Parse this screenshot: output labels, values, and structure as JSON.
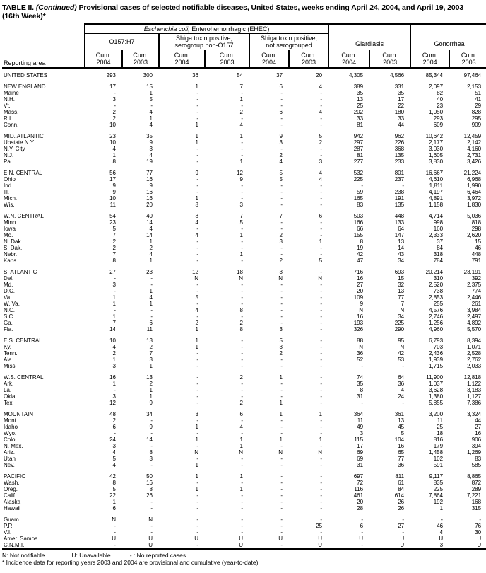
{
  "title": {
    "label": "TABLE II.",
    "continued": "(Continued)",
    "text": "Provisional cases of selected notifiable diseases, United States, weeks ending April 24, 2004, and April 19, 2003",
    "line2": "(16th Week)*"
  },
  "header": {
    "reporting_area": "Reporting area",
    "ehec_italic": "Escherichia coli,",
    "ehec_rest": " Enterohemorrhagic (EHEC)",
    "o157": "O157:H7",
    "shiga_serogroup_l1": "Shiga toxin positive,",
    "shiga_serogroup_l2": "serogroup non-O157",
    "shiga_notsero_l1": "Shiga toxin positive,",
    "shiga_notsero_l2": "not serogrouped",
    "giardiasis": "Giardiasis",
    "gonorrhea": "Gonorrhea",
    "cum_label": "Cum.",
    "years": [
      "2004",
      "2003",
      "2004",
      "2003",
      "2004",
      "2003",
      "2004",
      "2003",
      "2004",
      "2003"
    ]
  },
  "table": {
    "rows": [
      {
        "area": "UNITED STATES",
        "type": "first",
        "gap": false,
        "v": [
          "293",
          "300",
          "36",
          "54",
          "37",
          "20",
          "4,305",
          "4,566",
          "85,344",
          "97,464"
        ]
      },
      {
        "area": "NEW ENGLAND",
        "type": "region",
        "gap": true,
        "v": [
          "17",
          "15",
          "1",
          "7",
          "6",
          "4",
          "389",
          "331",
          "2,097",
          "2,153"
        ]
      },
      {
        "area": "Maine",
        "type": "state",
        "gap": false,
        "v": [
          "-",
          "1",
          "-",
          "-",
          "-",
          "-",
          "35",
          "35",
          "82",
          "51"
        ]
      },
      {
        "area": "N.H.",
        "type": "state",
        "gap": false,
        "v": [
          "3",
          "5",
          "-",
          "1",
          "-",
          "-",
          "13",
          "17",
          "40",
          "41"
        ]
      },
      {
        "area": "Vt.",
        "type": "state",
        "gap": false,
        "v": [
          "-",
          "-",
          "-",
          "-",
          "-",
          "-",
          "25",
          "22",
          "23",
          "29"
        ]
      },
      {
        "area": "Mass.",
        "type": "state",
        "gap": false,
        "v": [
          "2",
          "4",
          "-",
          "2",
          "6",
          "4",
          "202",
          "180",
          "1,050",
          "828"
        ]
      },
      {
        "area": "R.I.",
        "type": "state",
        "gap": false,
        "v": [
          "2",
          "1",
          "-",
          "-",
          "-",
          "-",
          "33",
          "33",
          "293",
          "295"
        ]
      },
      {
        "area": "Conn.",
        "type": "state",
        "gap": false,
        "v": [
          "10",
          "4",
          "1",
          "4",
          "-",
          "-",
          "81",
          "44",
          "609",
          "909"
        ]
      },
      {
        "area": "MID. ATLANTIC",
        "type": "region",
        "gap": true,
        "v": [
          "23",
          "35",
          "1",
          "1",
          "9",
          "5",
          "942",
          "962",
          "10,642",
          "12,459"
        ]
      },
      {
        "area": "Upstate N.Y.",
        "type": "state",
        "gap": false,
        "v": [
          "10",
          "9",
          "1",
          "-",
          "3",
          "2",
          "297",
          "226",
          "2,177",
          "2,142"
        ]
      },
      {
        "area": "N.Y. City",
        "type": "state",
        "gap": false,
        "v": [
          "4",
          "3",
          "-",
          "-",
          "-",
          "-",
          "287",
          "368",
          "3,030",
          "4,160"
        ]
      },
      {
        "area": "N.J.",
        "type": "state",
        "gap": false,
        "v": [
          "1",
          "4",
          "-",
          "-",
          "2",
          "-",
          "81",
          "135",
          "1,605",
          "2,731"
        ]
      },
      {
        "area": "Pa.",
        "type": "state",
        "gap": false,
        "v": [
          "8",
          "19",
          "-",
          "1",
          "4",
          "3",
          "277",
          "233",
          "3,830",
          "3,426"
        ]
      },
      {
        "area": "E.N. CENTRAL",
        "type": "region",
        "gap": true,
        "v": [
          "56",
          "77",
          "9",
          "12",
          "5",
          "4",
          "532",
          "801",
          "16,667",
          "21,224"
        ]
      },
      {
        "area": "Ohio",
        "type": "state",
        "gap": false,
        "v": [
          "17",
          "16",
          "-",
          "9",
          "5",
          "4",
          "225",
          "237",
          "4,610",
          "6,968"
        ]
      },
      {
        "area": "Ind.",
        "type": "state",
        "gap": false,
        "v": [
          "9",
          "9",
          "-",
          "-",
          "-",
          "-",
          "-",
          "-",
          "1,811",
          "1,990"
        ]
      },
      {
        "area": "Ill.",
        "type": "state",
        "gap": false,
        "v": [
          "9",
          "16",
          "-",
          "-",
          "-",
          "-",
          "59",
          "238",
          "4,197",
          "6,464"
        ]
      },
      {
        "area": "Mich.",
        "type": "state",
        "gap": false,
        "v": [
          "10",
          "16",
          "1",
          "-",
          "-",
          "-",
          "165",
          "191",
          "4,891",
          "3,972"
        ]
      },
      {
        "area": "Wis.",
        "type": "state",
        "gap": false,
        "v": [
          "11",
          "20",
          "8",
          "3",
          "-",
          "-",
          "83",
          "135",
          "1,158",
          "1,830"
        ]
      },
      {
        "area": "W.N. CENTRAL",
        "type": "region",
        "gap": true,
        "v": [
          "54",
          "40",
          "8",
          "7",
          "7",
          "6",
          "503",
          "448",
          "4,714",
          "5,036"
        ]
      },
      {
        "area": "Minn.",
        "type": "state",
        "gap": false,
        "v": [
          "23",
          "14",
          "4",
          "5",
          "-",
          "-",
          "166",
          "133",
          "998",
          "818"
        ]
      },
      {
        "area": "Iowa",
        "type": "state",
        "gap": false,
        "v": [
          "5",
          "4",
          "-",
          "-",
          "-",
          "-",
          "66",
          "64",
          "160",
          "298"
        ]
      },
      {
        "area": "Mo.",
        "type": "state",
        "gap": false,
        "v": [
          "7",
          "14",
          "4",
          "1",
          "2",
          "-",
          "155",
          "147",
          "2,333",
          "2,620"
        ]
      },
      {
        "area": "N. Dak.",
        "type": "state",
        "gap": false,
        "v": [
          "2",
          "1",
          "-",
          "-",
          "3",
          "1",
          "8",
          "13",
          "37",
          "15"
        ]
      },
      {
        "area": "S. Dak.",
        "type": "state",
        "gap": false,
        "v": [
          "2",
          "2",
          "-",
          "-",
          "-",
          "-",
          "19",
          "14",
          "84",
          "46"
        ]
      },
      {
        "area": "Nebr.",
        "type": "state",
        "gap": false,
        "v": [
          "7",
          "4",
          "-",
          "1",
          "-",
          "-",
          "42",
          "43",
          "318",
          "448"
        ]
      },
      {
        "area": "Kans.",
        "type": "state",
        "gap": false,
        "v": [
          "8",
          "1",
          "-",
          "-",
          "2",
          "5",
          "47",
          "34",
          "784",
          "791"
        ]
      },
      {
        "area": "S. ATLANTIC",
        "type": "region",
        "gap": true,
        "v": [
          "27",
          "23",
          "12",
          "18",
          "3",
          "-",
          "716",
          "693",
          "20,214",
          "23,191"
        ]
      },
      {
        "area": "Del.",
        "type": "state",
        "gap": false,
        "v": [
          "-",
          "-",
          "N",
          "N",
          "N",
          "N",
          "16",
          "15",
          "310",
          "392"
        ]
      },
      {
        "area": "Md.",
        "type": "state",
        "gap": false,
        "v": [
          "3",
          "-",
          "-",
          "-",
          "-",
          "-",
          "27",
          "32",
          "2,520",
          "2,375"
        ]
      },
      {
        "area": "D.C.",
        "type": "state",
        "gap": false,
        "v": [
          "-",
          "1",
          "-",
          "-",
          "-",
          "-",
          "20",
          "13",
          "738",
          "774"
        ]
      },
      {
        "area": "Va.",
        "type": "state",
        "gap": false,
        "v": [
          "1",
          "4",
          "5",
          "-",
          "-",
          "-",
          "109",
          "77",
          "2,853",
          "2,446"
        ]
      },
      {
        "area": "W. Va.",
        "type": "state",
        "gap": false,
        "v": [
          "1",
          "1",
          "-",
          "-",
          "-",
          "-",
          "9",
          "7",
          "255",
          "261"
        ]
      },
      {
        "area": "N.C.",
        "type": "state",
        "gap": false,
        "v": [
          "-",
          "-",
          "4",
          "8",
          "-",
          "-",
          "N",
          "N",
          "4,576",
          "3,984"
        ]
      },
      {
        "area": "S.C.",
        "type": "state",
        "gap": false,
        "v": [
          "1",
          "-",
          "-",
          "-",
          "-",
          "-",
          "16",
          "34",
          "2,746",
          "2,497"
        ]
      },
      {
        "area": "Ga.",
        "type": "state",
        "gap": false,
        "v": [
          "7",
          "6",
          "2",
          "2",
          "-",
          "-",
          "193",
          "225",
          "1,256",
          "4,892"
        ]
      },
      {
        "area": "Fla.",
        "type": "state",
        "gap": false,
        "v": [
          "14",
          "11",
          "1",
          "8",
          "3",
          "-",
          "326",
          "290",
          "4,960",
          "5,570"
        ]
      },
      {
        "area": "E.S. CENTRAL",
        "type": "region",
        "gap": true,
        "v": [
          "10",
          "13",
          "1",
          "-",
          "5",
          "-",
          "88",
          "95",
          "6,793",
          "8,394"
        ]
      },
      {
        "area": "Ky.",
        "type": "state",
        "gap": false,
        "v": [
          "4",
          "2",
          "1",
          "-",
          "3",
          "-",
          "N",
          "N",
          "703",
          "1,071"
        ]
      },
      {
        "area": "Tenn.",
        "type": "state",
        "gap": false,
        "v": [
          "2",
          "7",
          "-",
          "-",
          "2",
          "-",
          "36",
          "42",
          "2,436",
          "2,528"
        ]
      },
      {
        "area": "Ala.",
        "type": "state",
        "gap": false,
        "v": [
          "1",
          "3",
          "-",
          "-",
          "-",
          "-",
          "52",
          "53",
          "1,939",
          "2,762"
        ]
      },
      {
        "area": "Miss.",
        "type": "state",
        "gap": false,
        "v": [
          "3",
          "1",
          "-",
          "-",
          "-",
          "-",
          "-",
          "-",
          "1,715",
          "2,033"
        ]
      },
      {
        "area": "W.S. CENTRAL",
        "type": "region",
        "gap": true,
        "v": [
          "16",
          "13",
          "-",
          "2",
          "1",
          "-",
          "74",
          "64",
          "11,900",
          "12,818"
        ]
      },
      {
        "area": "Ark.",
        "type": "state",
        "gap": false,
        "v": [
          "1",
          "2",
          "-",
          "-",
          "-",
          "-",
          "35",
          "36",
          "1,037",
          "1,122"
        ]
      },
      {
        "area": "La.",
        "type": "state",
        "gap": false,
        "v": [
          "-",
          "1",
          "-",
          "-",
          "-",
          "-",
          "8",
          "4",
          "3,628",
          "3,183"
        ]
      },
      {
        "area": "Okla.",
        "type": "state",
        "gap": false,
        "v": [
          "3",
          "1",
          "-",
          "-",
          "-",
          "-",
          "31",
          "24",
          "1,380",
          "1,127"
        ]
      },
      {
        "area": "Tex.",
        "type": "state",
        "gap": false,
        "v": [
          "12",
          "9",
          "-",
          "2",
          "1",
          "-",
          "-",
          "-",
          "5,855",
          "7,386"
        ]
      },
      {
        "area": "MOUNTAIN",
        "type": "region",
        "gap": true,
        "v": [
          "48",
          "34",
          "3",
          "6",
          "1",
          "1",
          "364",
          "361",
          "3,200",
          "3,324"
        ]
      },
      {
        "area": "Mont.",
        "type": "state",
        "gap": false,
        "v": [
          "2",
          "-",
          "-",
          "-",
          "-",
          "-",
          "11",
          "13",
          "11",
          "44"
        ]
      },
      {
        "area": "Idaho",
        "type": "state",
        "gap": false,
        "v": [
          "6",
          "9",
          "1",
          "4",
          "-",
          "-",
          "49",
          "45",
          "25",
          "27"
        ]
      },
      {
        "area": "Wyo.",
        "type": "state",
        "gap": false,
        "v": [
          "-",
          "-",
          "-",
          "-",
          "-",
          "-",
          "3",
          "5",
          "18",
          "16"
        ]
      },
      {
        "area": "Colo.",
        "type": "state",
        "gap": false,
        "v": [
          "24",
          "14",
          "1",
          "1",
          "1",
          "1",
          "115",
          "104",
          "816",
          "906"
        ]
      },
      {
        "area": "N. Mex.",
        "type": "state",
        "gap": false,
        "v": [
          "3",
          "-",
          "-",
          "1",
          "-",
          "-",
          "17",
          "16",
          "179",
          "394"
        ]
      },
      {
        "area": "Ariz.",
        "type": "state",
        "gap": false,
        "v": [
          "4",
          "8",
          "N",
          "N",
          "N",
          "N",
          "69",
          "65",
          "1,458",
          "1,269"
        ]
      },
      {
        "area": "Utah",
        "type": "state",
        "gap": false,
        "v": [
          "5",
          "3",
          "-",
          "-",
          "-",
          "-",
          "69",
          "77",
          "102",
          "83"
        ]
      },
      {
        "area": "Nev.",
        "type": "state",
        "gap": false,
        "v": [
          "4",
          "-",
          "1",
          "-",
          "-",
          "-",
          "31",
          "36",
          "591",
          "585"
        ]
      },
      {
        "area": "PACIFIC",
        "type": "region",
        "gap": true,
        "v": [
          "42",
          "50",
          "1",
          "1",
          "-",
          "-",
          "697",
          "811",
          "9,117",
          "8,865"
        ]
      },
      {
        "area": "Wash.",
        "type": "state",
        "gap": false,
        "v": [
          "8",
          "16",
          "-",
          "-",
          "-",
          "-",
          "72",
          "61",
          "835",
          "872"
        ]
      },
      {
        "area": "Oreg.",
        "type": "state",
        "gap": false,
        "v": [
          "5",
          "8",
          "1",
          "1",
          "-",
          "-",
          "116",
          "84",
          "225",
          "289"
        ]
      },
      {
        "area": "Calif.",
        "type": "state",
        "gap": false,
        "v": [
          "22",
          "26",
          "-",
          "-",
          "-",
          "-",
          "461",
          "614",
          "7,864",
          "7,221"
        ]
      },
      {
        "area": "Alaska",
        "type": "state",
        "gap": false,
        "v": [
          "1",
          "-",
          "-",
          "-",
          "-",
          "-",
          "20",
          "26",
          "192",
          "168"
        ]
      },
      {
        "area": "Hawaii",
        "type": "state",
        "gap": false,
        "v": [
          "6",
          "-",
          "-",
          "-",
          "-",
          "-",
          "28",
          "26",
          "1",
          "315"
        ]
      },
      {
        "area": "Guam",
        "type": "territory",
        "gap": true,
        "v": [
          "N",
          "N",
          "-",
          "-",
          "-",
          "-",
          "-",
          "-",
          "-",
          "-"
        ]
      },
      {
        "area": "P.R.",
        "type": "territory",
        "gap": false,
        "v": [
          "-",
          "-",
          "-",
          "-",
          "-",
          "25",
          "6",
          "27",
          "46",
          "76"
        ]
      },
      {
        "area": "V.I.",
        "type": "territory",
        "gap": false,
        "v": [
          "-",
          "-",
          "-",
          "-",
          "-",
          "-",
          "-",
          "-",
          "4",
          "30"
        ]
      },
      {
        "area": "Amer. Samoa",
        "type": "territory",
        "gap": false,
        "v": [
          "U",
          "U",
          "U",
          "U",
          "U",
          "U",
          "U",
          "U",
          "U",
          "U"
        ]
      },
      {
        "area": "C.N.M.I.",
        "type": "territory",
        "gap": false,
        "v": [
          "-",
          "U",
          "-",
          "U",
          "-",
          "U",
          "-",
          "U",
          "3",
          "U"
        ]
      }
    ]
  },
  "footnotes": {
    "n": "N: Not notifiable.",
    "u": "U: Unavailable.",
    "dash": "- : No reported cases.",
    "asterisk": "* Incidence data for reporting years 2003 and 2004 are provisional and cumulative (year-to-date)."
  }
}
